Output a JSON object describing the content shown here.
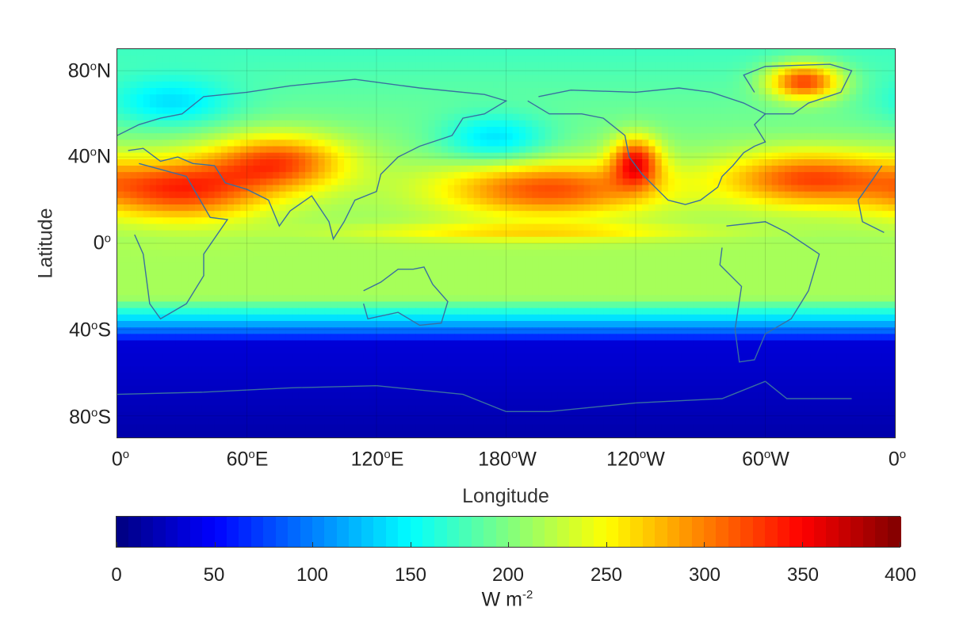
{
  "chart_data": {
    "type": "heatmap",
    "title": "",
    "xlabel": "Longitude",
    "ylabel": "Latitude",
    "x_ticks": [
      "0",
      "60",
      "120",
      "180",
      "120",
      "60",
      "0"
    ],
    "x_tick_hemis": [
      "",
      "E",
      "E",
      "W",
      "W",
      "W",
      ""
    ],
    "y_ticks": [
      "80",
      "40",
      "0",
      "40",
      "80"
    ],
    "y_tick_hemis": [
      "N",
      "N",
      "",
      "S",
      "S"
    ],
    "degree_symbol": "o",
    "colorbar": {
      "colormap": "jet",
      "range": [
        0,
        400
      ],
      "ticks": [
        "0",
        "50",
        "100",
        "150",
        "200",
        "250",
        "300",
        "350",
        "400"
      ],
      "units_base": "W m",
      "units_exp": "-2"
    },
    "description_regions": [
      {
        "lon": 30,
        "lat": 25,
        "value": 340
      },
      {
        "lon": 60,
        "lat": 35,
        "value": 330
      },
      {
        "lon": 200,
        "lat": 25,
        "value": 320
      },
      {
        "lon": 240,
        "lat": 38,
        "value": 340
      },
      {
        "lon": 320,
        "lat": 30,
        "value": 320
      },
      {
        "lon": 318,
        "lat": 75,
        "value": 340
      },
      {
        "lon": 180,
        "lat": -60,
        "value": 20
      }
    ]
  }
}
